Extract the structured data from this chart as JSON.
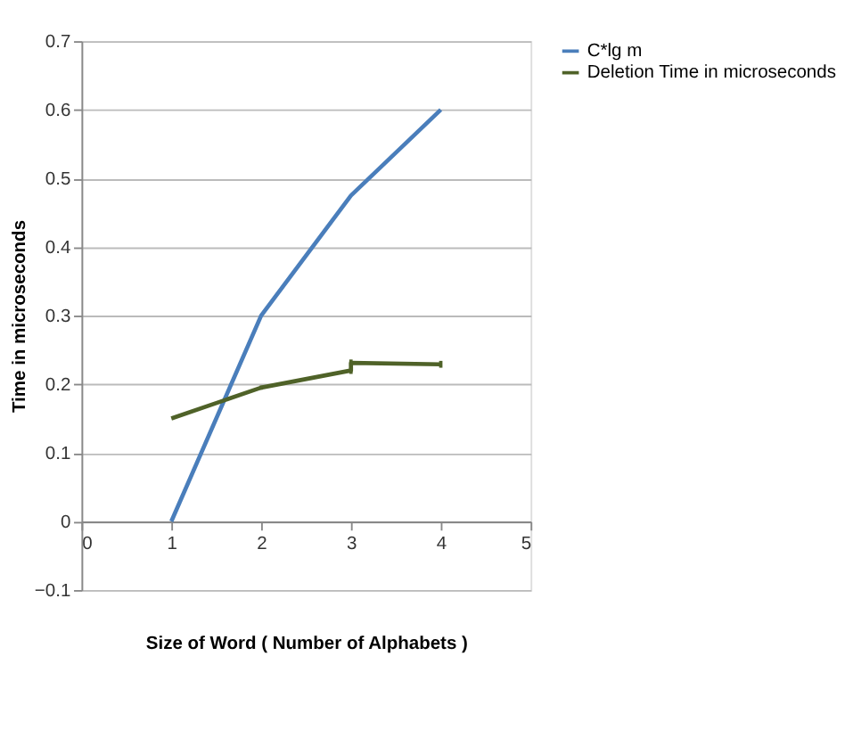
{
  "chart_data": {
    "type": "line",
    "xlabel": "Size of Word ( Number of Alphabets )",
    "ylabel": "Time in microseconds",
    "xlim": [
      0,
      5
    ],
    "xticks": [
      0,
      1,
      2,
      3,
      4,
      5
    ],
    "ylim": [
      -0.1,
      0.7
    ],
    "yticks": [
      -0.1,
      0,
      0.1,
      0.2,
      0.3,
      0.4,
      0.5,
      0.6,
      0.7
    ],
    "grid": "y",
    "legend": "right",
    "marker": "none",
    "line_style": "solid",
    "series": [
      {
        "name": "C*lg m",
        "color": "#4a7ebb",
        "x": [
          1,
          2,
          3,
          4
        ],
        "values": [
          0,
          0.3,
          0.475,
          0.6
        ]
      },
      {
        "name": "Deletion Time in microseconds",
        "color": "#4f6228",
        "x": [
          1,
          2,
          3,
          3,
          4
        ],
        "values": [
          0.15,
          0.195,
          0.22,
          0.231,
          0.229
        ],
        "errors": [
          null,
          0.003,
          0.005,
          0.005,
          0.005
        ]
      }
    ]
  }
}
